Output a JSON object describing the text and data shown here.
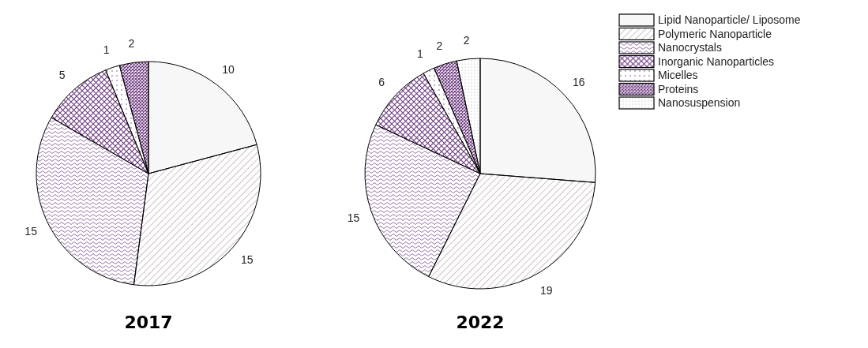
{
  "chart_data": [
    {
      "type": "pie",
      "title": "2017",
      "categories": [
        null,
        null,
        null,
        null,
        null,
        null
      ],
      "values": [
        10,
        15,
        15,
        5,
        1,
        2
      ],
      "colors": [
        "#f7f7f7",
        "#9a8494",
        "#8a62a0",
        "#6e3a80",
        "#7a4a8a",
        "#6e3a80"
      ],
      "data_labels": true,
      "legend": false
    },
    {
      "type": "pie",
      "title": "2022",
      "categories": [
        "Lipid Nanoparticle/ Liposome",
        "Polymeric Nanoparticle",
        "Nanocrystals",
        "Inorganic Nanoparticles",
        "Micelles",
        "Proteins",
        "Nanosuspension"
      ],
      "values": [
        16,
        19,
        15,
        6,
        1,
        2,
        2
      ],
      "colors": [
        "#f7f7f7",
        "#9a8494",
        "#8a62a0",
        "#6e3a80",
        "#7a4a8a",
        "#6e3a80",
        "#a0a0a0"
      ],
      "data_labels": true,
      "legend": "top right"
    }
  ]
}
